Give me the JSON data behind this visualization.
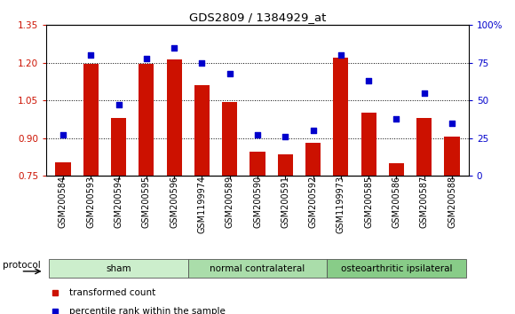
{
  "title": "GDS2809 / 1384929_at",
  "categories": [
    "GSM200584",
    "GSM200593",
    "GSM200594",
    "GSM200595",
    "GSM200596",
    "GSM1199974",
    "GSM200589",
    "GSM200590",
    "GSM200591",
    "GSM200592",
    "GSM1199973",
    "GSM200585",
    "GSM200586",
    "GSM200587",
    "GSM200588"
  ],
  "bar_values": [
    0.805,
    1.195,
    0.98,
    1.195,
    1.215,
    1.11,
    1.045,
    0.845,
    0.835,
    0.88,
    1.22,
    1.0,
    0.8,
    0.98,
    0.905
  ],
  "scatter_values": [
    27,
    80,
    47,
    78,
    85,
    75,
    68,
    27,
    26,
    30,
    80,
    63,
    38,
    55,
    35
  ],
  "bar_color": "#cc1100",
  "scatter_color": "#0000cc",
  "ylim_left": [
    0.75,
    1.35
  ],
  "ylim_right": [
    0,
    100
  ],
  "yticks_left": [
    0.75,
    0.9,
    1.05,
    1.2,
    1.35
  ],
  "yticks_right": [
    0,
    25,
    50,
    75,
    100
  ],
  "groups": [
    {
      "label": "sham",
      "start": 0,
      "end": 4
    },
    {
      "label": "normal contralateral",
      "start": 5,
      "end": 9
    },
    {
      "label": "osteoarthritic ipsilateral",
      "start": 10,
      "end": 14
    }
  ],
  "group_colors": [
    "#cceecc",
    "#aaddaa",
    "#88cc88"
  ],
  "protocol_label": "protocol",
  "legend_bar_label": "transformed count",
  "legend_scatter_label": "percentile rank within the sample",
  "axis_label_color_left": "#cc1100",
  "axis_label_color_right": "#0000cc",
  "tick_label_fontsize": 7.0
}
